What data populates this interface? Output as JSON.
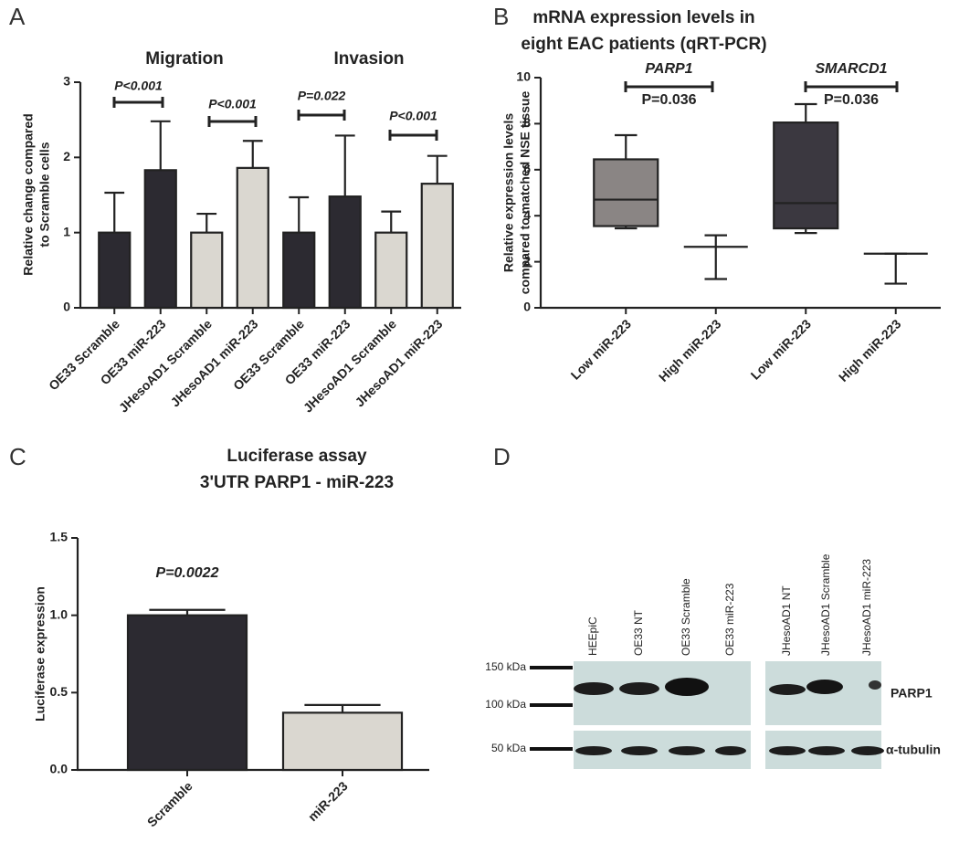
{
  "panels": [
    "A",
    "B",
    "C",
    "D"
  ],
  "chart_data": [
    {
      "type": "bar",
      "group_labels": [
        "Migration",
        "Invasion"
      ],
      "ylabel": [
        "Relative change compared",
        "to Scramble cells"
      ],
      "categories": [
        "OE33 Scramble",
        "OE33 miR-223",
        "JHesoAD1 Scramble",
        "JHesoAD1 miR-223",
        "OE33 Scramble",
        "OE33 miR-223",
        "JHesoAD1 Scramble",
        "JHesoAD1 miR-223"
      ],
      "values": [
        1.0,
        1.83,
        1.0,
        1.86,
        1.0,
        1.48,
        1.0,
        1.65
      ],
      "errors": [
        0.53,
        0.65,
        0.25,
        0.36,
        0.47,
        0.81,
        0.28,
        0.37
      ],
      "colors": [
        "#2c2a31",
        "#2c2a31",
        "#dad7d0",
        "#dad7d0",
        "#2c2a31",
        "#2c2a31",
        "#dad7d0",
        "#dad7d0"
      ],
      "annotations": [
        "P<0.001",
        "P<0.001",
        "P=0.022",
        "P<0.001"
      ],
      "ylim": [
        0,
        3
      ],
      "yticks": [
        0,
        1,
        2,
        3
      ]
    },
    {
      "type": "box",
      "title": [
        "mRNA expression levels in",
        "eight EAC patients (qRT-PCR)"
      ],
      "ylabel": [
        "Relative expression levels",
        "compared to matched NSE tissue"
      ],
      "categories": [
        "Low miR-223",
        "High miR-223",
        "Low miR-223",
        "High miR-223"
      ],
      "boxes": [
        {
          "min": 3.45,
          "q1": 3.55,
          "median": 4.7,
          "q3": 6.45,
          "max": 7.5
        },
        {
          "min": 1.25,
          "q1": 2.65,
          "median": 2.65,
          "q3": 2.65,
          "max": 3.15
        },
        {
          "min": 3.25,
          "q1": 3.45,
          "median": 4.55,
          "q3": 8.05,
          "max": 8.85
        },
        {
          "min": 1.05,
          "q1": 2.35,
          "median": 2.35,
          "q3": 2.35,
          "max": 2.35
        }
      ],
      "colors": [
        "#8a8584",
        "#8a8584",
        "#3b3840",
        "#3b3840"
      ],
      "annotations": [
        "PARP1",
        "P=0.036",
        "SMARCD1",
        "P=0.036"
      ],
      "ylim": [
        0,
        10
      ],
      "yticks": [
        0,
        2,
        4,
        6,
        8,
        10
      ]
    },
    {
      "type": "bar",
      "title": [
        "Luciferase assay",
        "3'UTR PARP1 - miR-223"
      ],
      "ylabel": [
        "Luciferase expression"
      ],
      "categories": [
        "Scramble",
        "miR-223"
      ],
      "values": [
        1.0,
        0.37
      ],
      "errors": [
        0.035,
        0.05
      ],
      "colors": [
        "#2c2a31",
        "#dad7d0"
      ],
      "annotations": [
        "P=0.0022"
      ],
      "ylim": [
        0,
        1.5
      ],
      "yticks": [
        {
          "value": 0,
          "label": "0.0"
        },
        0.5,
        {
          "value": 1,
          "label": "1.0"
        },
        1.5
      ]
    }
  ],
  "blot": {
    "lanes": [
      "HEEpiC",
      "OE33 NT",
      "OE33 Scramble",
      "OE33 miR-223",
      "JHesoAD1 NT",
      "JHesoAD1 Scramble",
      "JHesoAD1 miR-223"
    ],
    "markers": [
      "150 kDa",
      "100 kDa",
      "50 kDa"
    ],
    "proteins": [
      "PARP1",
      "α-tubulin"
    ]
  }
}
